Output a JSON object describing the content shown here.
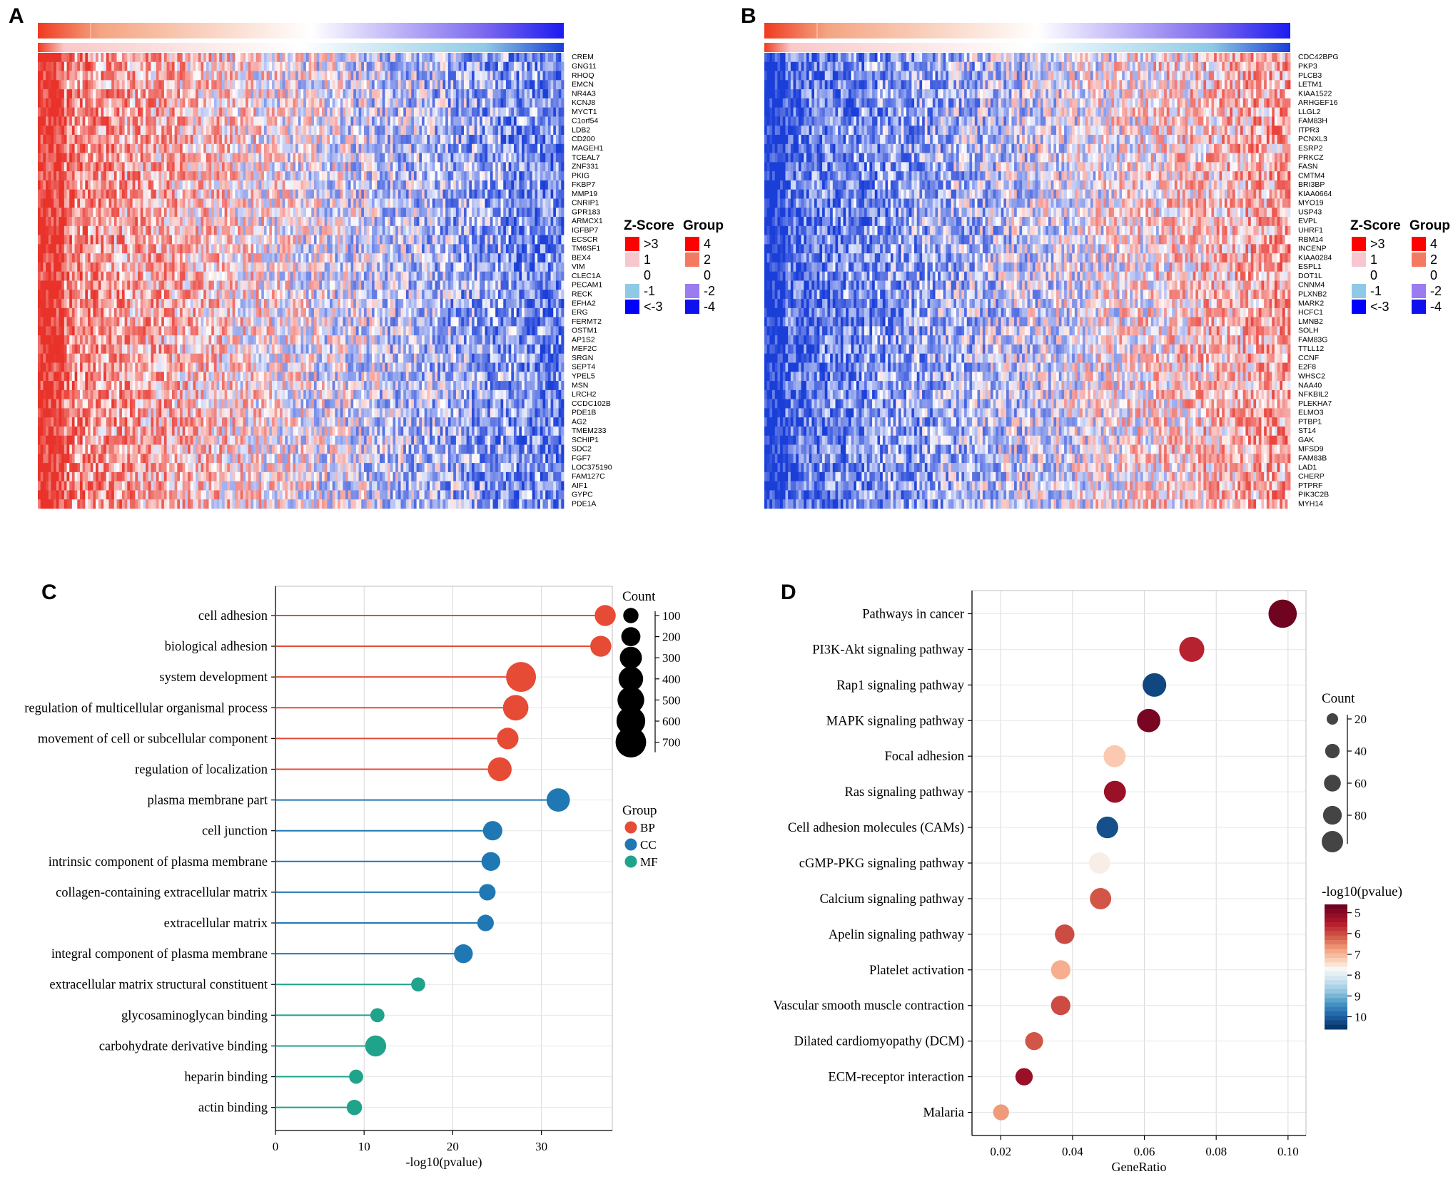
{
  "panels": {
    "a": {
      "letter": "A"
    },
    "b": {
      "letter": "B"
    },
    "c": {
      "letter": "C"
    },
    "d": {
      "letter": "D"
    }
  },
  "colors": {
    "heat_red": "#e8322a",
    "heat_white": "#ffffff",
    "heat_blue": "#1a3ed8",
    "group_red": "#f03a20",
    "group_salmon": "#f4a582",
    "group_purple": "#7b68ee",
    "group_blue": "#1b1bf0",
    "bp": "#e64b35",
    "cc": "#1f78b4",
    "mf": "#1fa38a",
    "d_dark_red": "#67001f",
    "d_dark_blue": "#053061"
  },
  "heatmap_legend": {
    "zscore_title": "Z-Score",
    "zscore_labels": [
      ">3",
      "1",
      "0",
      "-1",
      "<-3"
    ],
    "zscore_colors": [
      "#ff0000",
      "#f7c6cf",
      "#ffffff",
      "#8ecae6",
      "#0000ff"
    ],
    "group_title": "Group",
    "group_labels": [
      "4",
      "2",
      "0",
      "-2",
      "-4"
    ],
    "group_colors": [
      "#ff0000",
      "#f37a60",
      "#ffffff",
      "#9b7bf0",
      "#1010ee"
    ]
  },
  "chart_data": [
    {
      "type": "heatmap",
      "panel": "A",
      "genes": [
        "CREM",
        "GNG11",
        "RHOQ",
        "EMCN",
        "NR4A3",
        "KCNJ8",
        "MYCT1",
        "C1orf54",
        "LDB2",
        "CD200",
        "MAGEH1",
        "TCEAL7",
        "ZNF331",
        "PKIG",
        "FKBP7",
        "MMP19",
        "CNRIP1",
        "GPR183",
        "ARMCX1",
        "IGFBP7",
        "ECSCR",
        "TM6SF1",
        "BEX4",
        "VIM",
        "CLEC1A",
        "PECAM1",
        "RECK",
        "EFHA2",
        "ERG",
        "FERMT2",
        "OSTM1",
        "AP1S2",
        "MEF2C",
        "SRGN",
        "SEPT4",
        "YPEL5",
        "MSN",
        "LRCH2",
        "CCDC102B",
        "PDE1B",
        "AG2",
        "TMEM233",
        "SCHIP1",
        "SDC2",
        "FGF7",
        "LOC375190",
        "FAM127C",
        "AIF1",
        "GYPC",
        "PDE1A"
      ],
      "pattern": "high-to-low"
    },
    {
      "type": "heatmap",
      "panel": "B",
      "genes": [
        "CDC42BPG",
        "PKP3",
        "PLCB3",
        "LETM1",
        "KIAA1522",
        "ARHGEF16",
        "LLGL2",
        "FAM83H",
        "ITPR3",
        "PCNXL3",
        "ESRP2",
        "PRKCZ",
        "FASN",
        "CMTM4",
        "BRI3BP",
        "KIAA0664",
        "MYO19",
        "USP43",
        "EVPL",
        "UHRF1",
        "RBM14",
        "INCENP",
        "KIAA0284",
        "ESPL1",
        "DOT1L",
        "CNNM4",
        "PLXNB2",
        "MARK2",
        "HCFC1",
        "LMNB2",
        "SOLH",
        "FAM83G",
        "TTLL12",
        "CCNF",
        "E2F8",
        "WHSC2",
        "NAA40",
        "NFKBIL2",
        "PLEKHA7",
        "ELMO3",
        "PTBP1",
        "ST14",
        "GAK",
        "MFSD9",
        "FAM83B",
        "LAD1",
        "CHERP",
        "PTPRF",
        "PIK3C2B",
        "MYH14"
      ],
      "pattern": "low-to-high"
    },
    {
      "type": "scatter",
      "panel": "C",
      "style": "lollipop",
      "xlabel": "-log10(pvalue)",
      "xlim": [
        0,
        38
      ],
      "xticks": [
        0,
        10,
        20,
        30
      ],
      "categories": [
        "cell adhesion",
        "biological adhesion",
        "system development",
        "regulation of multicellular organismal process",
        "movement of cell or subcellular component",
        "regulation of localization",
        "plasma membrane part",
        "cell junction",
        "intrinsic component of plasma membrane",
        "collagen-containing extracellular matrix",
        "extracellular matrix",
        "integral component of plasma membrane",
        "extracellular matrix structural constituent",
        "glycosaminoglycan binding",
        "carbohydrate derivative binding",
        "heparin binding",
        "actin binding"
      ],
      "values": [
        37.2,
        36.7,
        27.7,
        27.1,
        26.2,
        25.3,
        31.9,
        24.5,
        24.3,
        23.9,
        23.7,
        21.2,
        16.1,
        11.5,
        11.3,
        9.1,
        8.9
      ],
      "counts": [
        300,
        300,
        750,
        500,
        320,
        420,
        400,
        240,
        220,
        150,
        150,
        220,
        90,
        90,
        300,
        90,
        120
      ],
      "groups": [
        "BP",
        "BP",
        "BP",
        "BP",
        "BP",
        "BP",
        "CC",
        "CC",
        "CC",
        "CC",
        "CC",
        "CC",
        "MF",
        "MF",
        "MF",
        "MF",
        "MF"
      ],
      "size_legend_title": "Count",
      "size_legend_values": [
        100,
        200,
        300,
        400,
        500,
        600,
        700
      ],
      "group_legend_title": "Group",
      "group_legend": [
        "BP",
        "CC",
        "MF"
      ],
      "grid": true
    },
    {
      "type": "scatter",
      "panel": "D",
      "style": "dot",
      "xlabel": "GeneRatio",
      "xlim": [
        0.012,
        0.105
      ],
      "xticks": [
        0.02,
        0.04,
        0.06,
        0.08,
        0.1
      ],
      "xtick_labels": [
        "0.02",
        "0.04",
        "0.06",
        "0.08",
        "0.10"
      ],
      "categories": [
        "Pathways in cancer",
        "PI3K-Akt signaling pathway",
        "Rap1 signaling pathway",
        "MAPK signaling pathway",
        "Focal adhesion",
        "Ras signaling pathway",
        "Cell adhesion molecules (CAMs)",
        "cGMP-PKG signaling pathway",
        "Calcium signaling pathway",
        "Apelin signaling pathway",
        "Platelet activation",
        "Vascular smooth muscle contraction",
        "Dilated cardiomyopathy (DCM)",
        "ECM-receptor interaction",
        "Malaria"
      ],
      "values": [
        0.0985,
        0.0732,
        0.0628,
        0.0612,
        0.0517,
        0.0518,
        0.0497,
        0.0475,
        0.0478,
        0.0378,
        0.0367,
        0.0367,
        0.0293,
        0.0265,
        0.0201
      ],
      "counts": [
        98,
        72,
        62,
        60,
        51,
        51,
        49,
        47,
        47,
        37,
        36,
        36,
        29,
        26,
        20
      ],
      "neglog10p": [
        4.7,
        5.6,
        10.3,
        4.8,
        7.2,
        5.2,
        10.2,
        7.6,
        6.1,
        6.0,
        6.9,
        6.0,
        6.1,
        5.2,
        6.7
      ],
      "size_legend_title": "Count",
      "size_legend_values": [
        20,
        40,
        60,
        80
      ],
      "color_legend_title": "-log10(pvalue)",
      "color_legend_values": [
        5,
        6,
        7,
        8,
        9,
        10
      ],
      "grid": true
    }
  ]
}
